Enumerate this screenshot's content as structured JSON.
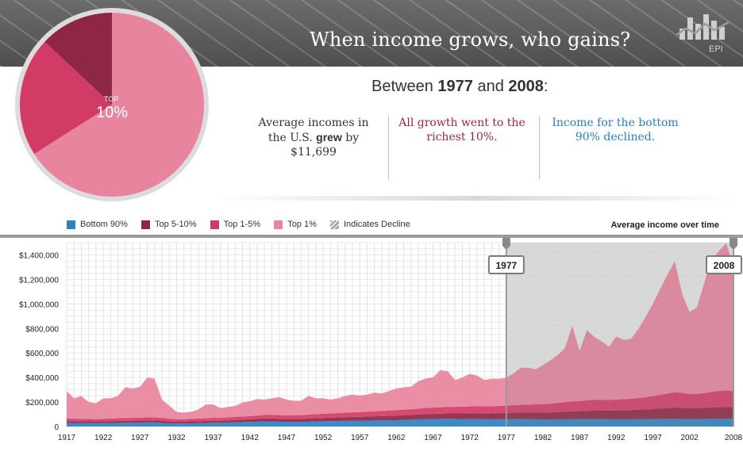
{
  "header": {
    "title": "When income grows, who gains?",
    "logo_text": "EPI",
    "logo_icon": "bar-chart-logo-icon"
  },
  "pie": {
    "label_small": "TOP",
    "label_big": "10%",
    "slices": [
      {
        "name": "Top 1%",
        "percent": 0.66,
        "color": "#e8849e"
      },
      {
        "name": "Top 1-5%",
        "percent": 0.21,
        "color": "#d33b67"
      },
      {
        "name": "Top 5-10%",
        "percent": 0.13,
        "color": "#8e2645"
      }
    ]
  },
  "summary": {
    "subhead_pre": "Between ",
    "start_year": "1977",
    "subhead_mid": " and ",
    "end_year": "2008",
    "subhead_post": ":",
    "fact1_pre": "Average incomes in the U.S. ",
    "fact1_bold": "grew",
    "fact1_post": " by $11,699",
    "fact2": "All growth went to the richest 10%.",
    "fact3": "Income for the bottom 90% declined."
  },
  "legend": {
    "items": [
      {
        "label": "Bottom 90%",
        "color": "#2a82c1"
      },
      {
        "label": "Top 5-10%",
        "color": "#8e2645"
      },
      {
        "label": "Top 1-5%",
        "color": "#d33b67"
      },
      {
        "label": "Top 1%",
        "color": "#e8849e"
      },
      {
        "label": "Indicates Decline",
        "color": "hatch"
      }
    ],
    "right_label": "Average income over time"
  },
  "chart_data": {
    "type": "area",
    "title": "",
    "xlabel": "",
    "ylabel": "",
    "ylim": [
      0,
      1500000
    ],
    "xlim": [
      1917,
      2008
    ],
    "yticks": [
      0,
      200000,
      400000,
      600000,
      800000,
      1000000,
      1200000,
      1400000
    ],
    "ytick_labels": [
      "0",
      "$200,000",
      "$400,000",
      "$600,000",
      "$800,000",
      "$1,000,000",
      "$1,200,000",
      "$1,400,000"
    ],
    "xticks": [
      1917,
      1922,
      1927,
      1932,
      1937,
      1942,
      1947,
      1952,
      1957,
      1962,
      1967,
      1972,
      1977,
      1982,
      1987,
      1992,
      1997,
      2002,
      2008
    ],
    "stacked": true,
    "highlight_range": [
      1977,
      2008
    ],
    "markers": [
      {
        "label": "1977",
        "x": 1977
      },
      {
        "label": "2008",
        "x": 2008
      }
    ],
    "x": [
      1917,
      1918,
      1919,
      1920,
      1921,
      1922,
      1923,
      1924,
      1925,
      1926,
      1927,
      1928,
      1929,
      1930,
      1931,
      1932,
      1933,
      1934,
      1935,
      1936,
      1937,
      1938,
      1939,
      1940,
      1941,
      1942,
      1943,
      1944,
      1945,
      1946,
      1947,
      1948,
      1949,
      1950,
      1951,
      1952,
      1953,
      1954,
      1955,
      1956,
      1957,
      1958,
      1959,
      1960,
      1961,
      1962,
      1963,
      1964,
      1965,
      1966,
      1967,
      1968,
      1969,
      1970,
      1971,
      1972,
      1973,
      1974,
      1975,
      1976,
      1977,
      1978,
      1979,
      1980,
      1981,
      1982,
      1983,
      1984,
      1985,
      1986,
      1987,
      1988,
      1989,
      1990,
      1991,
      1992,
      1993,
      1994,
      1995,
      1996,
      1997,
      1998,
      1999,
      2000,
      2001,
      2002,
      2003,
      2004,
      2005,
      2006,
      2007,
      2008
    ],
    "series": [
      {
        "name": "Bottom 90%",
        "color": "#2a82c1",
        "values": [
          30000,
          29000,
          29000,
          28000,
          27000,
          28000,
          29000,
          30000,
          31000,
          31000,
          32000,
          33000,
          33000,
          30000,
          27000,
          24000,
          24000,
          26000,
          27000,
          29000,
          31000,
          30000,
          32000,
          34000,
          36000,
          38000,
          40000,
          42000,
          42000,
          40000,
          38000,
          38000,
          38000,
          40000,
          42000,
          43000,
          44000,
          45000,
          46000,
          47000,
          47000,
          48000,
          49000,
          50000,
          51000,
          52000,
          54000,
          56000,
          58000,
          60000,
          61000,
          62000,
          63000,
          62000,
          61000,
          61000,
          61000,
          60000,
          59000,
          60000,
          60000,
          61000,
          61000,
          60000,
          59000,
          58000,
          58000,
          59000,
          59000,
          60000,
          60000,
          61000,
          61000,
          60000,
          59000,
          59000,
          59000,
          59000,
          60000,
          60000,
          61000,
          62000,
          63000,
          63000,
          62000,
          61000,
          61000,
          62000,
          63000,
          64000,
          64000,
          63000
        ]
      },
      {
        "name": "Top 5-10%",
        "color": "#8e2645",
        "values": [
          15000,
          14000,
          14000,
          14000,
          14000,
          15000,
          15000,
          16000,
          16000,
          16000,
          17000,
          17000,
          17000,
          17000,
          16000,
          15000,
          15000,
          16000,
          16000,
          17000,
          17000,
          17000,
          18000,
          19000,
          20000,
          21000,
          22000,
          24000,
          24000,
          23000,
          24000,
          24000,
          24000,
          25000,
          26000,
          27000,
          28000,
          29000,
          30000,
          31000,
          32000,
          33000,
          34000,
          35000,
          36000,
          37000,
          38000,
          39000,
          40000,
          41000,
          42000,
          43000,
          44000,
          45000,
          46000,
          47000,
          48000,
          48000,
          48000,
          49000,
          50000,
          51000,
          52000,
          53000,
          54000,
          55000,
          57000,
          59000,
          61000,
          63000,
          65000,
          67000,
          69000,
          70000,
          71000,
          72000,
          74000,
          75000,
          77000,
          79000,
          82000,
          85000,
          88000,
          92000,
          91000,
          89000,
          89000,
          90000,
          92000,
          94000,
          95000,
          96000
        ]
      },
      {
        "name": "Top 1-5%",
        "color": "#d33b67",
        "values": [
          22000,
          21000,
          20000,
          20000,
          19000,
          20000,
          21000,
          22000,
          23000,
          23000,
          24000,
          25000,
          25000,
          23000,
          22000,
          20000,
          20000,
          21000,
          22000,
          23000,
          23000,
          23000,
          24000,
          25000,
          26000,
          27000,
          28000,
          30000,
          30000,
          30000,
          30000,
          31000,
          31000,
          32000,
          33000,
          34000,
          35000,
          36000,
          37000,
          38000,
          39000,
          40000,
          41000,
          42000,
          43000,
          44000,
          45000,
          46000,
          48000,
          50000,
          51000,
          52000,
          53000,
          54000,
          55000,
          57000,
          58000,
          58000,
          58000,
          59000,
          60000,
          62000,
          64000,
          66000,
          68000,
          70000,
          72000,
          75000,
          78000,
          82000,
          82000,
          86000,
          88000,
          88000,
          86000,
          90000,
          90000,
          92000,
          95000,
          100000,
          106000,
          112000,
          118000,
          125000,
          122000,
          115000,
          115000,
          120000,
          127000,
          132000,
          137000,
          130000
        ]
      },
      {
        "name": "Top 1%",
        "color": "#e8849e",
        "values": [
          223000,
          166000,
          187000,
          138000,
          130000,
          167000,
          165000,
          182000,
          250000,
          240000,
          250000,
          325000,
          315000,
          150000,
          105000,
          60000,
          55000,
          57000,
          75000,
          111000,
          109000,
          80000,
          86000,
          90000,
          114000,
          120000,
          135000,
          124000,
          134000,
          147000,
          128000,
          117000,
          117000,
          153000,
          129000,
          126000,
          113000,
          120000,
          137000,
          144000,
          135000,
          139000,
          153000,
          143000,
          160000,
          177000,
          183000,
          184000,
          224000,
          240000,
          248000,
          303000,
          291000,
          219000,
          238000,
          265000,
          249000,
          214000,
          225000,
          222000,
          228000,
          260000,
          303000,
          300000,
          286000,
          317000,
          353000,
          389000,
          441000,
          617000,
          410000,
          573000,
          513000,
          478000,
          434000,
          514000,
          483000,
          488000,
          560000,
          655000,
          751000,
          865000,
          971000,
          1070000,
          805000,
          670000,
          705000,
          898000,
          1078000,
          1140000,
          1199000,
          1021000
        ]
      }
    ]
  }
}
